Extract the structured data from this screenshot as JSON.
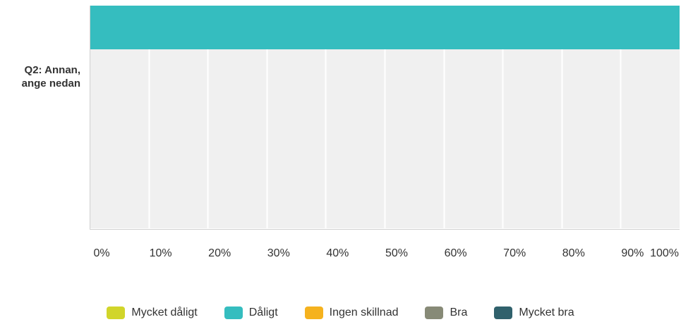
{
  "chart_data": {
    "type": "bar",
    "orientation": "horizontal",
    "stacked": true,
    "categories": [
      "Q2: Annan, ange nedan"
    ],
    "series": [
      {
        "name": "Mycket dåligt",
        "values": [
          0
        ],
        "color": "#d1d52a"
      },
      {
        "name": "Dåligt",
        "values": [
          100
        ],
        "color": "#35bdbf"
      },
      {
        "name": "Ingen skillnad",
        "values": [
          0
        ],
        "color": "#f5b21e"
      },
      {
        "name": "Bra",
        "values": [
          0
        ],
        "color": "#878a77"
      },
      {
        "name": "Mycket bra",
        "values": [
          0
        ],
        "color": "#30616c"
      }
    ],
    "xlim": [
      0,
      100
    ],
    "xticks": [
      "0%",
      "10%",
      "20%",
      "30%",
      "40%",
      "50%",
      "60%",
      "70%",
      "80%",
      "90%",
      "100%"
    ],
    "title": "",
    "xlabel": "",
    "ylabel": "",
    "grid": true,
    "legend_position": "bottom"
  }
}
